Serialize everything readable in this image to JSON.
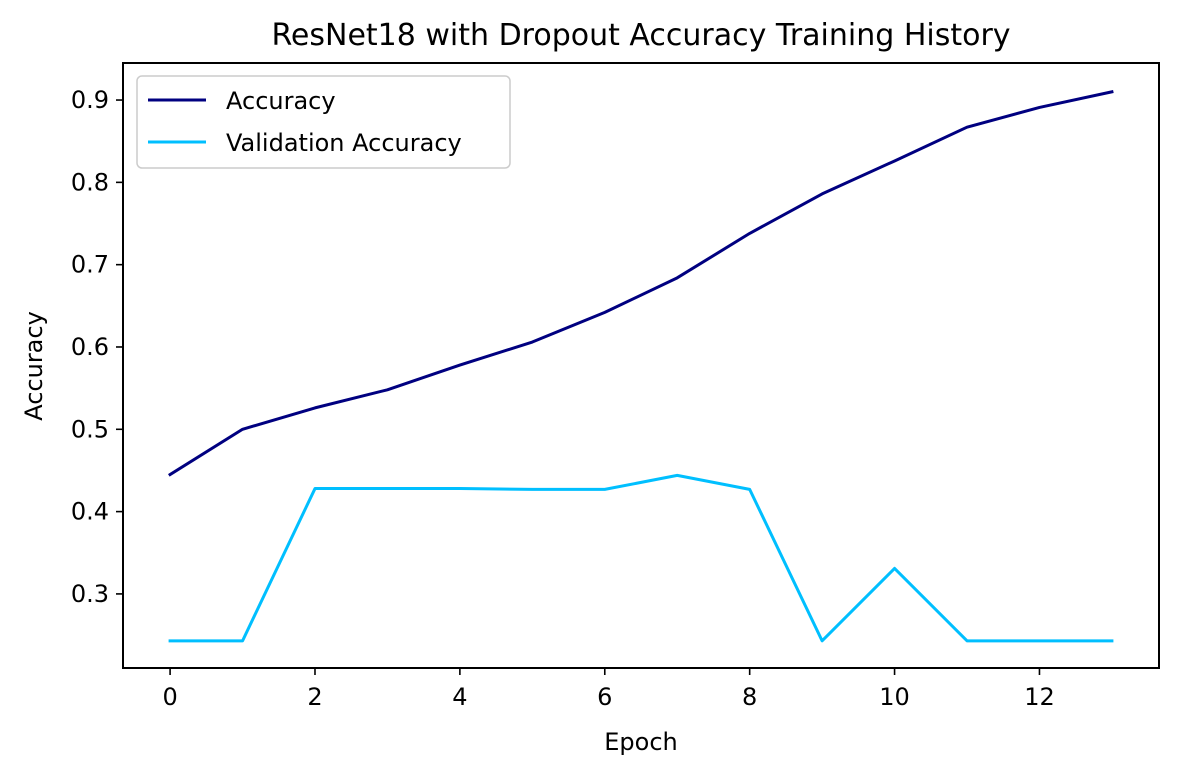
{
  "chart_data": {
    "type": "line",
    "title": "ResNet18 with Dropout Accuracy Training History",
    "xlabel": "Epoch",
    "ylabel": "Accuracy",
    "x": [
      0,
      1,
      2,
      3,
      4,
      5,
      6,
      7,
      8,
      9,
      10,
      11,
      12,
      13
    ],
    "xlim": [
      -0.65,
      13.65
    ],
    "ylim": [
      0.21,
      0.945
    ],
    "xticks": [
      0,
      2,
      4,
      6,
      8,
      10,
      12
    ],
    "yticks": [
      0.3,
      0.4,
      0.5,
      0.6,
      0.7,
      0.8,
      0.9
    ],
    "xtick_labels": [
      "0",
      "2",
      "4",
      "6",
      "8",
      "10",
      "12"
    ],
    "ytick_labels": [
      "0.3",
      "0.4",
      "0.5",
      "0.6",
      "0.7",
      "0.8",
      "0.9"
    ],
    "grid": false,
    "legend_position": "upper-left",
    "series": [
      {
        "name": "Accuracy",
        "color": "#000080",
        "values": [
          0.445,
          0.5,
          0.526,
          0.548,
          0.578,
          0.606,
          0.642,
          0.684,
          0.738,
          0.786,
          0.826,
          0.867,
          0.891,
          0.91
        ]
      },
      {
        "name": "Validation Accuracy",
        "color": "#00bfff",
        "values": [
          0.243,
          0.243,
          0.428,
          0.428,
          0.428,
          0.427,
          0.427,
          0.444,
          0.427,
          0.243,
          0.331,
          0.243,
          0.243,
          0.243
        ]
      }
    ]
  }
}
